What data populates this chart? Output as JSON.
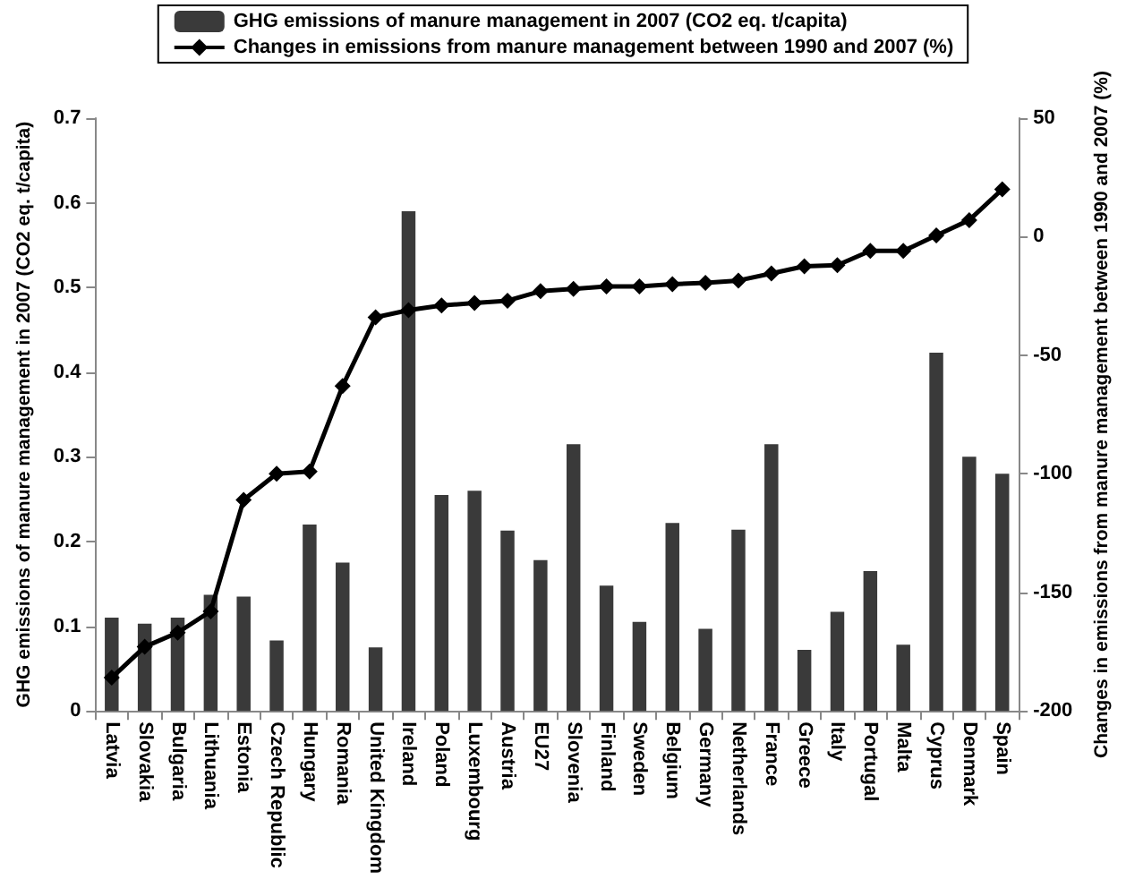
{
  "chart_data": {
    "type": "bar",
    "ylabel": "GHG emissions of manure management in 2007 (CO2 eq. t/capita)",
    "y2label": "Changes in emissions from manure management between 1990 and 2007 (%)",
    "categories": [
      "Latvia",
      "Slovakia",
      "Bulgaria",
      "Lithuania",
      "Estonia",
      "Czech Republic",
      "Hungary",
      "Romania",
      "United Kingdom",
      "Ireland",
      "Poland",
      "Luxembourg",
      "Austria",
      "EU27",
      "Slovenia",
      "Finland",
      "Sweden",
      "Belgium",
      "Germany",
      "Netherlands",
      "France",
      "Greece",
      "Italy",
      "Portugal",
      "Malta",
      "Cyprus",
      "Denmark",
      "Spain"
    ],
    "series": [
      {
        "name": "GHG emissions of manure management in 2007 (CO2 eq. t/capita)",
        "color": "#3a3a3a",
        "values": [
          0.11,
          0.103,
          0.11,
          0.137,
          0.135,
          0.083,
          0.22,
          0.175,
          0.075,
          0.59,
          0.255,
          0.26,
          0.213,
          0.178,
          0.315,
          0.148,
          0.105,
          0.222,
          0.097,
          0.214,
          0.315,
          0.072,
          0.117,
          0.165,
          0.078,
          0.423,
          0.3,
          0.28
        ]
      },
      {
        "name": "Changes in emissions from manure management between 1990 and 2007 (%)",
        "type": "line",
        "axis": "y2",
        "color": "#000000",
        "marker": "diamond",
        "values": [
          -186,
          -173,
          -167,
          -158,
          -111,
          -100,
          -99,
          -63,
          -34,
          -31,
          -29,
          -28,
          -27,
          -23,
          -22,
          -21,
          -21,
          -20,
          -19.5,
          -18.5,
          -15.5,
          -12.5,
          -12,
          -6,
          -6,
          0.5,
          7,
          20
        ]
      }
    ],
    "ylim": [
      0,
      0.7
    ],
    "yticks": [
      0,
      0.1,
      0.2,
      0.3,
      0.4,
      0.5,
      0.6,
      0.7
    ],
    "y2lim": [
      -200,
      50
    ],
    "y2ticks": [
      -200,
      -150,
      -100,
      -50,
      0,
      50
    ],
    "grid": false,
    "legend": "top"
  }
}
